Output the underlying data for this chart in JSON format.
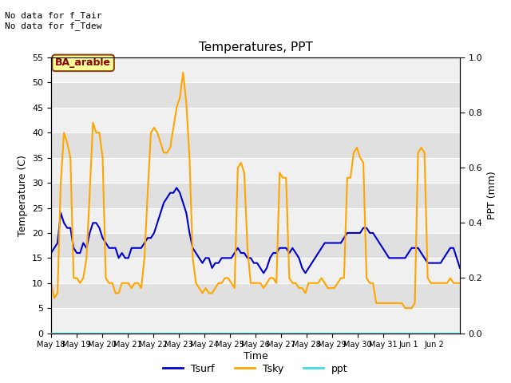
{
  "title": "Temperatures, PPT",
  "xlabel": "Time",
  "ylabel_left": "Temperature (C)",
  "ylabel_right": "PPT (mm)",
  "annotation_top": "No data for f_Tair\nNo data for f_Tdew",
  "station_label": "BA_arable",
  "ylim_left": [
    0,
    55
  ],
  "ylim_right": [
    0.0,
    1.0
  ],
  "yticks_left": [
    0,
    5,
    10,
    15,
    20,
    25,
    30,
    35,
    40,
    45,
    50,
    55
  ],
  "yticks_right": [
    0.0,
    0.2,
    0.4,
    0.6,
    0.8,
    1.0
  ],
  "xtick_labels": [
    "May 18",
    "May 19",
    "May 20",
    "May 21",
    "May 22",
    "May 23",
    "May 24",
    "May 25",
    "May 26",
    "May 27",
    "May 28",
    "May 29",
    "May 30",
    "May 31",
    "Jun 1",
    "Jun 2"
  ],
  "color_tsurf": "#0000cc",
  "color_tsky": "#ffa500",
  "color_ppt": "#44dddd",
  "bg_dark": "#e0e0e0",
  "bg_light": "#f0f0f0",
  "grid_color": "#ffffff",
  "n_days": 16,
  "pts_per_day": 8,
  "tsky_raw": [
    10,
    7,
    8,
    30,
    40,
    38,
    35,
    11,
    11,
    10,
    11,
    15,
    28,
    42,
    40,
    40,
    35,
    11,
    10,
    10,
    8,
    8,
    10,
    10,
    10,
    9,
    10,
    10,
    9,
    15,
    28,
    40,
    41,
    40,
    38,
    36,
    36,
    37,
    41,
    45,
    47,
    52,
    46,
    35,
    15,
    10,
    9,
    8,
    9,
    8,
    8,
    9,
    10,
    10,
    11,
    11,
    10,
    9,
    33,
    34,
    32,
    17,
    10,
    10,
    10,
    10,
    9,
    10,
    11,
    11,
    10,
    32,
    31,
    31,
    11,
    10,
    10,
    9,
    9,
    8,
    10,
    10,
    10,
    10,
    11,
    10,
    9,
    9,
    9,
    10,
    11,
    11,
    31,
    31,
    36,
    37,
    35,
    34,
    11,
    10,
    10,
    6,
    6,
    6,
    6,
    6,
    6,
    6,
    6,
    6,
    5,
    5,
    5,
    6,
    36,
    37,
    36,
    11,
    10,
    10,
    10,
    10,
    10,
    10,
    11,
    10,
    10,
    10
  ],
  "tsurf_raw": [
    16,
    17,
    18,
    24,
    22,
    21,
    21,
    17,
    16,
    16,
    18,
    17,
    20,
    22,
    22,
    21,
    19,
    18,
    17,
    17,
    17,
    15,
    16,
    15,
    15,
    17,
    17,
    17,
    17,
    18,
    19,
    19,
    20,
    22,
    24,
    26,
    27,
    28,
    28,
    29,
    28,
    26,
    24,
    20,
    17,
    16,
    15,
    14,
    15,
    15,
    13,
    14,
    14,
    15,
    15,
    15,
    15,
    16,
    17,
    16,
    16,
    15,
    15,
    14,
    14,
    13,
    12,
    13,
    15,
    16,
    16,
    17,
    17,
    17,
    16,
    17,
    16,
    15,
    13,
    12,
    13,
    14,
    15,
    16,
    17,
    18,
    18,
    18,
    18,
    18,
    18,
    19,
    20,
    20,
    20,
    20,
    20,
    21,
    21,
    20,
    20,
    19,
    18,
    17,
    16,
    15,
    15,
    15,
    15,
    15,
    15,
    16,
    17,
    17,
    17,
    16,
    15,
    14,
    14,
    14,
    14,
    14,
    15,
    16,
    17,
    17,
    15,
    13
  ],
  "ppt_raw": [
    0,
    0,
    0,
    0,
    0,
    0,
    0,
    0,
    0,
    0,
    0,
    0,
    0,
    0,
    0,
    0,
    0,
    0,
    0,
    0,
    0,
    0,
    0,
    0,
    0,
    0,
    0,
    0,
    0,
    0,
    0,
    0,
    0,
    0,
    0,
    0,
    0,
    0,
    0,
    0,
    0,
    0,
    0,
    0,
    0,
    0,
    0,
    0,
    0,
    0,
    0,
    0,
    0,
    0,
    0,
    0,
    0,
    0,
    0,
    0,
    0,
    0,
    0,
    0,
    0,
    0,
    0,
    0,
    0,
    0,
    0,
    0,
    0,
    0,
    0,
    0,
    0,
    0,
    0,
    0,
    0,
    0,
    0,
    0,
    0,
    0,
    0,
    0,
    0,
    0,
    0,
    0,
    0,
    0,
    0,
    0,
    0,
    0,
    0,
    0,
    0,
    0,
    0,
    0,
    0,
    0,
    0,
    0,
    0,
    0,
    0,
    0,
    0,
    0,
    0,
    0,
    0,
    0,
    0,
    0,
    0,
    0,
    0,
    0,
    0,
    0,
    0,
    0
  ]
}
